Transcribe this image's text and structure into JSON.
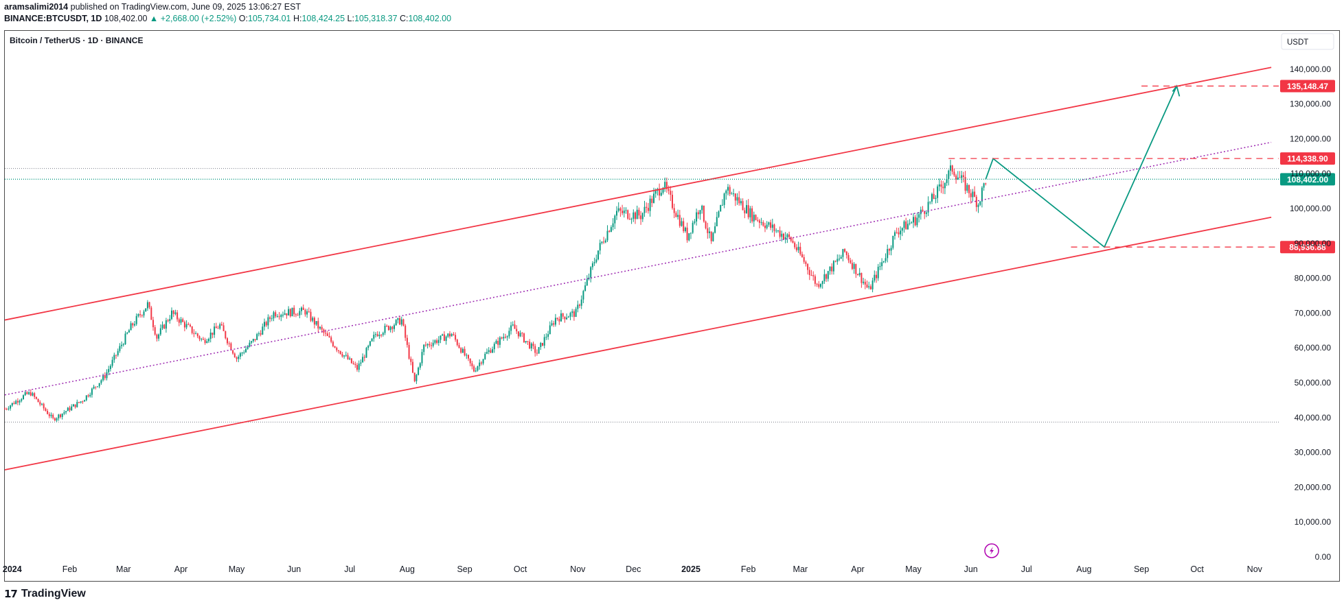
{
  "header": {
    "author": "aramsalimi2014",
    "published_text": "published on TradingView.com, June 09, 2025 13:06:27 EST",
    "symbol": "BINANCE:BTCUSDT, 1D",
    "last_price": "108,402.00",
    "change": "▲ +2,668.00 (+2.52%)",
    "open_label": "O:",
    "open": "105,734.01",
    "high_label": "H:",
    "high": "108,424.25",
    "low_label": "L:",
    "low": "105,318.37",
    "close_label": "C:",
    "close": "108,402.00"
  },
  "footer": {
    "brand": "TradingView",
    "logo": "tradingview-logo-icon"
  },
  "colors": {
    "up": "#089981",
    "down": "#f23645",
    "channel": "#f23645",
    "midline": "#9c27b0",
    "projection": "#089981",
    "grid_dot": "#787b86"
  },
  "chart_data": {
    "type": "candlestick",
    "title": "Bitcoin / TetherUS · 1D · BINANCE",
    "currency_button": "USDT",
    "y_ticks": [
      "140,000.00",
      "130,000.00",
      "120,000.00",
      "110,000.00",
      "100,000.00",
      "90,000.00",
      "80,000.00",
      "70,000.00",
      "60,000.00",
      "50,000.00",
      "40,000.00",
      "30,000.00",
      "20,000.00",
      "10,000.00",
      "0.00"
    ],
    "y_tick_values": [
      140000,
      130000,
      120000,
      110000,
      100000,
      90000,
      80000,
      70000,
      60000,
      50000,
      40000,
      30000,
      20000,
      10000,
      0
    ],
    "ylim": [
      0,
      150000
    ],
    "x_ticks": [
      {
        "label": "2024",
        "date": "2024-01-01",
        "bold": true
      },
      {
        "label": "Feb",
        "date": "2024-02-01"
      },
      {
        "label": "Mar",
        "date": "2024-03-01"
      },
      {
        "label": "Apr",
        "date": "2024-04-01"
      },
      {
        "label": "May",
        "date": "2024-05-01"
      },
      {
        "label": "Jun",
        "date": "2024-06-01"
      },
      {
        "label": "Jul",
        "date": "2024-07-01"
      },
      {
        "label": "Aug",
        "date": "2024-08-01"
      },
      {
        "label": "Sep",
        "date": "2024-09-01"
      },
      {
        "label": "Oct",
        "date": "2024-10-01"
      },
      {
        "label": "Nov",
        "date": "2024-11-01"
      },
      {
        "label": "Dec",
        "date": "2024-12-01"
      },
      {
        "label": "2025",
        "date": "2025-01-01",
        "bold": true
      },
      {
        "label": "Feb",
        "date": "2025-02-01"
      },
      {
        "label": "Mar",
        "date": "2025-03-01"
      },
      {
        "label": "Apr",
        "date": "2025-04-01"
      },
      {
        "label": "May",
        "date": "2025-05-01"
      },
      {
        "label": "Jun",
        "date": "2025-06-01"
      },
      {
        "label": "Jul",
        "date": "2025-07-01"
      },
      {
        "label": "Aug",
        "date": "2025-08-01"
      },
      {
        "label": "Sep",
        "date": "2025-09-01"
      },
      {
        "label": "Oct",
        "date": "2025-10-01"
      },
      {
        "label": "Nov",
        "date": "2025-11-01"
      }
    ],
    "price_path": [
      [
        "2023-12-28",
        42500
      ],
      [
        "2024-01-08",
        46500
      ],
      [
        "2024-01-11",
        47000
      ],
      [
        "2024-01-23",
        39500
      ],
      [
        "2024-02-08",
        45000
      ],
      [
        "2024-02-20",
        52000
      ],
      [
        "2024-02-28",
        60000
      ],
      [
        "2024-03-05",
        66000
      ],
      [
        "2024-03-14",
        72500
      ],
      [
        "2024-03-19",
        63000
      ],
      [
        "2024-03-27",
        70000
      ],
      [
        "2024-04-13",
        62000
      ],
      [
        "2024-04-22",
        66500
      ],
      [
        "2024-05-01",
        57000
      ],
      [
        "2024-05-10",
        62000
      ],
      [
        "2024-05-21",
        70000
      ],
      [
        "2024-06-07",
        70500
      ],
      [
        "2024-06-14",
        66000
      ],
      [
        "2024-06-24",
        60000
      ],
      [
        "2024-07-05",
        54000
      ],
      [
        "2024-07-15",
        64000
      ],
      [
        "2024-07-29",
        68000
      ],
      [
        "2024-08-05",
        50000
      ],
      [
        "2024-08-10",
        60500
      ],
      [
        "2024-08-25",
        64000
      ],
      [
        "2024-09-06",
        53500
      ],
      [
        "2024-09-12",
        58000
      ],
      [
        "2024-09-27",
        66000
      ],
      [
        "2024-10-10",
        58500
      ],
      [
        "2024-10-20",
        68500
      ],
      [
        "2024-10-31",
        70000
      ],
      [
        "2024-11-12",
        88000
      ],
      [
        "2024-11-22",
        99000
      ],
      [
        "2024-12-05",
        98000
      ],
      [
        "2024-12-17",
        107000
      ],
      [
        "2024-12-30",
        92000
      ],
      [
        "2025-01-06",
        101000
      ],
      [
        "2025-01-12",
        90000
      ],
      [
        "2025-01-20",
        106000
      ],
      [
        "2025-02-03",
        98000
      ],
      [
        "2025-02-24",
        91000
      ],
      [
        "2025-03-04",
        84000
      ],
      [
        "2025-03-10",
        78000
      ],
      [
        "2025-03-25",
        87500
      ],
      [
        "2025-04-07",
        76500
      ],
      [
        "2025-04-14",
        84500
      ],
      [
        "2025-04-22",
        93500
      ],
      [
        "2025-05-02",
        96800
      ],
      [
        "2025-05-12",
        103000
      ],
      [
        "2025-05-22",
        111500
      ],
      [
        "2025-06-05",
        101500
      ],
      [
        "2025-06-09",
        108402
      ]
    ],
    "channel_upper": [
      [
        "2023-12-28",
        68000
      ],
      [
        "2025-11-10",
        140500
      ]
    ],
    "channel_lower": [
      [
        "2023-12-28",
        25000
      ],
      [
        "2025-11-10",
        97500
      ]
    ],
    "midline": [
      [
        "2023-12-28",
        46500
      ],
      [
        "2025-11-10",
        119000
      ]
    ],
    "projection_path": [
      [
        "2025-06-09",
        108402
      ],
      [
        "2025-06-13",
        114338.9
      ],
      [
        "2025-08-12",
        88936.88
      ],
      [
        "2025-09-20",
        135148.47
      ]
    ],
    "horizontal_levels": [
      {
        "value": 135148.47,
        "label": "135,148.47",
        "style": "dashed",
        "start": "2025-09-01",
        "color": "#f23645"
      },
      {
        "value": 114338.9,
        "label": "114,338.90",
        "style": "dashed",
        "start": "2025-05-20",
        "color": "#f23645"
      },
      {
        "value": 88936.88,
        "label": "88,936.88",
        "style": "dashed",
        "start": "2025-07-25",
        "color": "#f23645"
      },
      {
        "value": 108402.0,
        "label": "108,402.00",
        "style": "dotted",
        "start": "2023-12-28",
        "color": "#089981"
      }
    ],
    "reference_lines": [
      {
        "value": 111500,
        "style": "dotted"
      },
      {
        "value": 38700,
        "style": "dotted"
      }
    ],
    "grid": false
  }
}
